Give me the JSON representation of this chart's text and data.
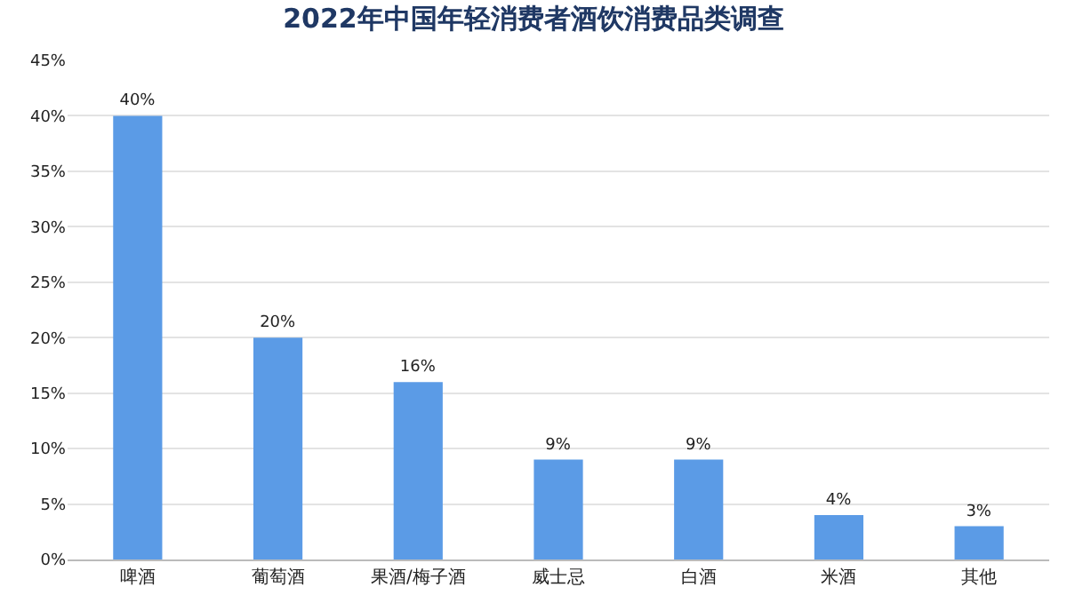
{
  "chart_data": {
    "type": "bar",
    "title": "2022年中国年轻消费者酒饮消费品类调查",
    "categories": [
      "啤酒",
      "葡萄酒",
      "果酒/梅子酒",
      "威士忌",
      "白酒",
      "米酒",
      "其他"
    ],
    "values": [
      40,
      20,
      16,
      9,
      9,
      4,
      3
    ],
    "value_labels": [
      "40%",
      "20%",
      "16%",
      "9%",
      "9%",
      "4%",
      "3%"
    ],
    "color": "#5b9be6",
    "ylim": [
      0,
      45
    ],
    "yticks": [
      {
        "value": 0,
        "label": "0%"
      },
      {
        "value": 5,
        "label": "5%"
      },
      {
        "value": 10,
        "label": "10%"
      },
      {
        "value": 15,
        "label": "15%"
      },
      {
        "value": 20,
        "label": "20%"
      },
      {
        "value": 25,
        "label": "25%"
      },
      {
        "value": 30,
        "label": "30%"
      },
      {
        "value": 35,
        "label": "35%"
      },
      {
        "value": 40,
        "label": "40%"
      },
      {
        "value": 45,
        "label": "45%"
      }
    ],
    "grid": "y"
  }
}
